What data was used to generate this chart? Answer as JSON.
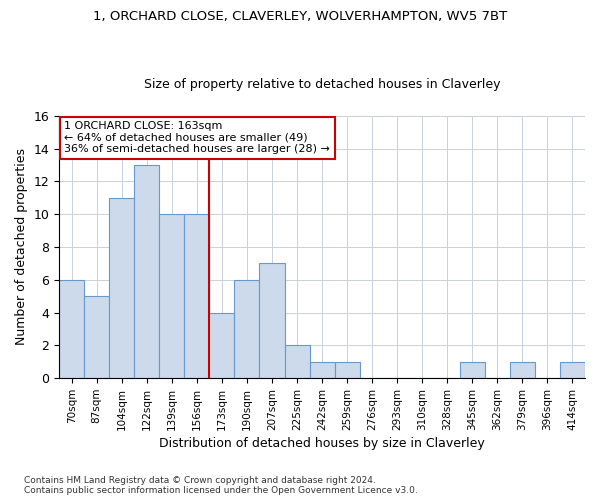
{
  "title1": "1, ORCHARD CLOSE, CLAVERLEY, WOLVERHAMPTON, WV5 7BT",
  "title2": "Size of property relative to detached houses in Claverley",
  "xlabel": "Distribution of detached houses by size in Claverley",
  "ylabel": "Number of detached properties",
  "bin_labels": [
    "70sqm",
    "87sqm",
    "104sqm",
    "122sqm",
    "139sqm",
    "156sqm",
    "173sqm",
    "190sqm",
    "207sqm",
    "225sqm",
    "242sqm",
    "259sqm",
    "276sqm",
    "293sqm",
    "310sqm",
    "328sqm",
    "345sqm",
    "362sqm",
    "379sqm",
    "396sqm",
    "414sqm"
  ],
  "bar_values": [
    6,
    5,
    11,
    13,
    10,
    10,
    4,
    6,
    7,
    2,
    1,
    1,
    0,
    0,
    0,
    0,
    1,
    0,
    1,
    0,
    1
  ],
  "bar_color": "#ccdaeb",
  "bar_edge_color": "#6699cc",
  "vline_x": 6,
  "vline_color": "#cc0000",
  "annotation_text": "1 ORCHARD CLOSE: 163sqm\n← 64% of detached houses are smaller (49)\n36% of semi-detached houses are larger (28) →",
  "annotation_box_color": "#ffffff",
  "annotation_box_edge_color": "#cc0000",
  "ylim": [
    0,
    16
  ],
  "yticks": [
    0,
    2,
    4,
    6,
    8,
    10,
    12,
    14,
    16
  ],
  "footer": "Contains HM Land Registry data © Crown copyright and database right 2024.\nContains public sector information licensed under the Open Government Licence v3.0.",
  "bg_color": "#ffffff",
  "grid_color": "#c8d0dc"
}
